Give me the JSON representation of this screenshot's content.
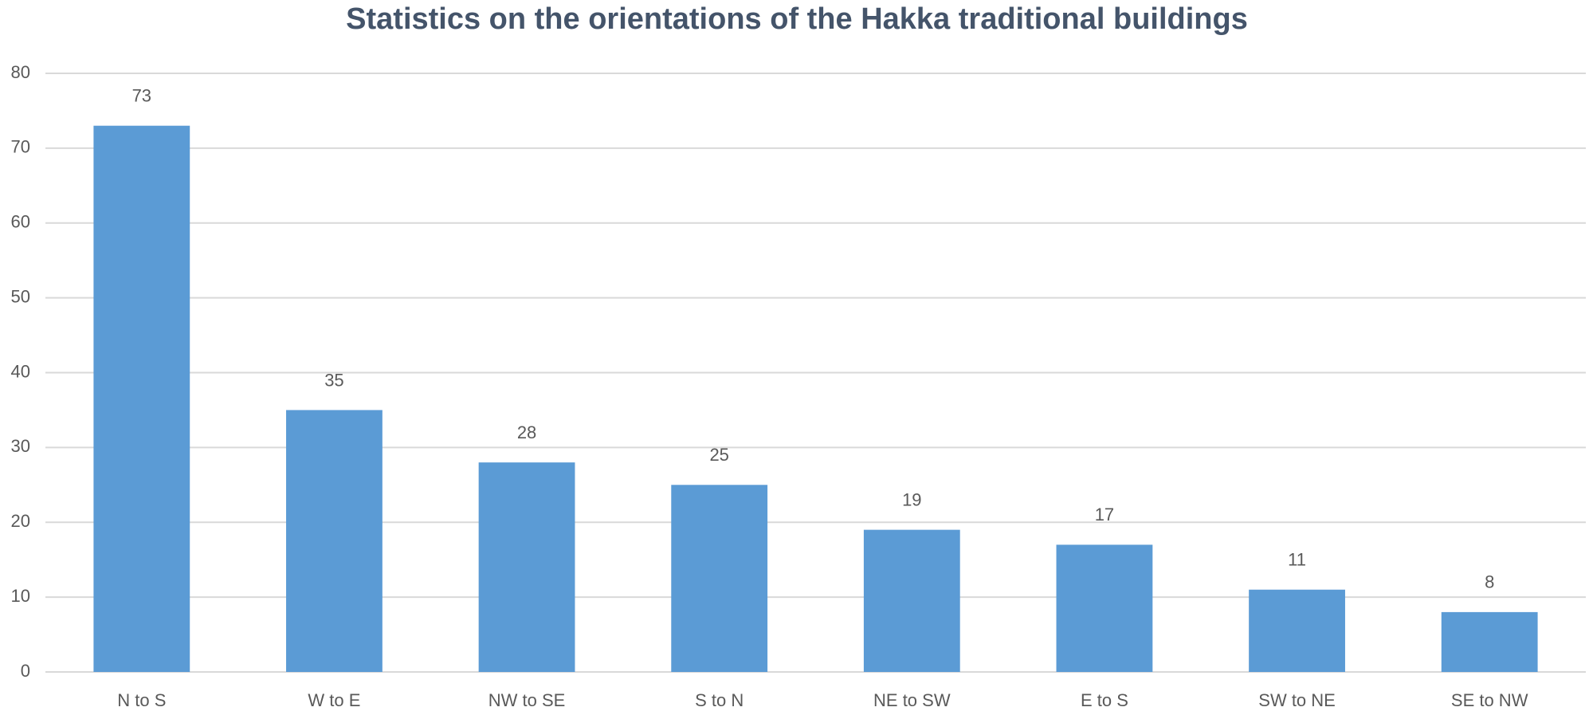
{
  "chart_data": {
    "type": "bar",
    "title": "Statistics on the orientations of the Hakka traditional buildings",
    "categories": [
      "N to S",
      "W to E",
      "NW to SE",
      "S to N",
      "NE to SW",
      "E to S",
      "SW to NE",
      "SE to NW"
    ],
    "values": [
      73,
      35,
      28,
      25,
      19,
      17,
      11,
      8
    ],
    "color": "#5b9bd5",
    "ylim": [
      0,
      80
    ],
    "yticks": [
      0,
      10,
      20,
      30,
      40,
      50,
      60,
      70,
      80
    ],
    "grid": true
  }
}
